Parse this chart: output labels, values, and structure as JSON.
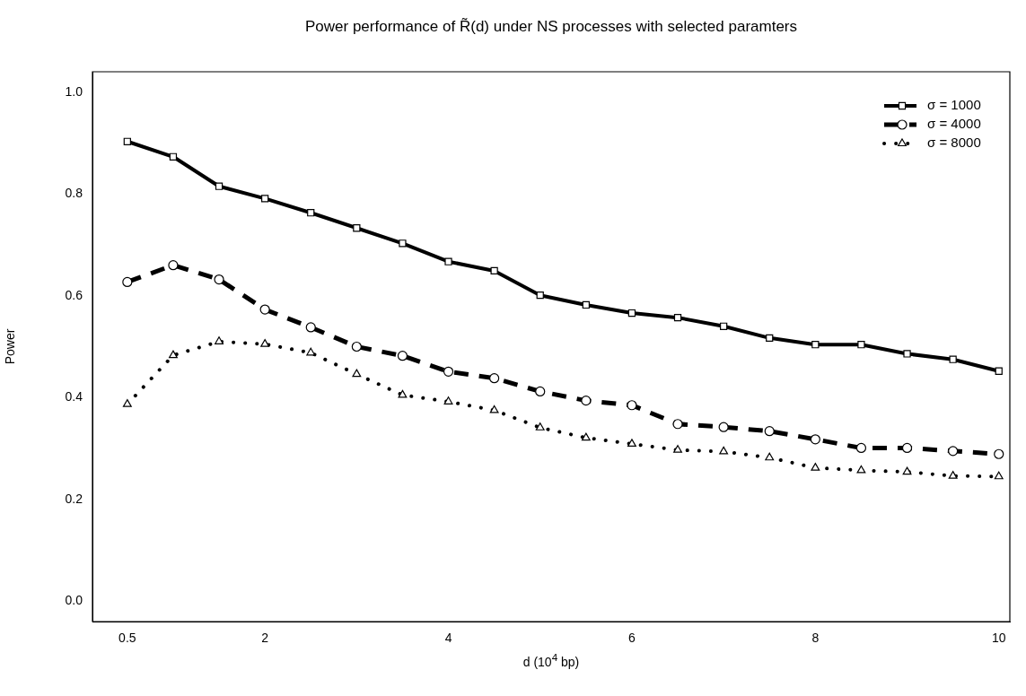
{
  "chart_data": {
    "type": "line",
    "title": "Power performance of R̃(d) under NS processes with selected paramters",
    "xlabel": "d (10$^{4}$ bp)",
    "ylabel": "Power",
    "x": [
      0.5,
      1,
      1.5,
      2,
      2.5,
      3,
      3.5,
      4,
      4.5,
      5,
      5.5,
      6,
      6.5,
      7,
      7.5,
      8,
      8.5,
      9,
      9.5,
      10
    ],
    "series": [
      {
        "name": "σ = 1000",
        "color": "#000000",
        "marker": "square",
        "line_style": "solid",
        "values": [
          0.903,
          0.873,
          0.815,
          0.791,
          0.763,
          0.733,
          0.703,
          0.667,
          0.649,
          0.601,
          0.582,
          0.566,
          0.557,
          0.54,
          0.517,
          0.504,
          0.504,
          0.486,
          0.475,
          0.452
        ]
      },
      {
        "name": "σ = 4000",
        "color": "#000000",
        "marker": "circle",
        "line_style": "dashed",
        "values": [
          0.627,
          0.66,
          0.632,
          0.573,
          0.538,
          0.5,
          0.482,
          0.451,
          0.438,
          0.412,
          0.394,
          0.385,
          0.348,
          0.342,
          0.334,
          0.318,
          0.301,
          0.301,
          0.295,
          0.289
        ]
      },
      {
        "name": "σ = 8000",
        "color": "#000000",
        "marker": "triangle",
        "line_style": "dotted",
        "values": [
          0.387,
          0.483,
          0.51,
          0.505,
          0.488,
          0.446,
          0.405,
          0.392,
          0.375,
          0.341,
          0.321,
          0.309,
          0.297,
          0.294,
          0.282,
          0.262,
          0.257,
          0.254,
          0.246,
          0.245
        ]
      }
    ],
    "xlim": [
      0.12,
      10.12
    ],
    "xticks": [
      0.5,
      2,
      4,
      6,
      8,
      10
    ],
    "ylim": [
      -0.04,
      1.04
    ],
    "yticks": [
      {
        "value": 0,
        "label": "0.0"
      },
      {
        "value": 0.2,
        "label": "0.2"
      },
      {
        "value": 0.4,
        "label": "0.4"
      },
      {
        "value": 0.6,
        "label": "0.6"
      },
      {
        "value": 0.8,
        "label": "0.8"
      },
      {
        "value": 1,
        "label": "1.0"
      }
    ],
    "grid": false,
    "legend": "top right"
  }
}
